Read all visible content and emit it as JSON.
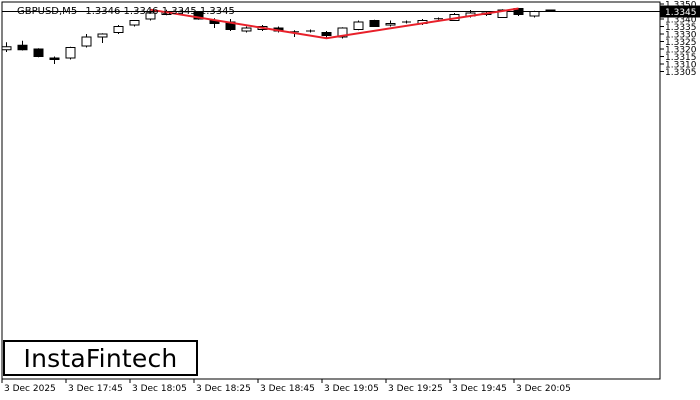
{
  "header": {
    "symbol": "GBPUSD,M5",
    "ohlc": "1.3346 1.3346 1.3345 1.3345"
  },
  "logo_text": "InstaFintech",
  "colors": {
    "background": "#ffffff",
    "candle": "#000000",
    "pattern_line": "#e8202a",
    "price_tag_bg": "#000000",
    "price_tag_text": "#ffffff"
  },
  "chart_data": {
    "type": "candlestick",
    "title": "GBPUSD,M5",
    "ylim": [
      1.33,
      1.335
    ],
    "y_ticks": [
      "1.3350",
      "1.3345",
      "1.3340",
      "1.3335",
      "1.3330",
      "1.3325",
      "1.3320",
      "1.3315",
      "1.3310",
      "1.3305"
    ],
    "x_ticks": [
      "3 Dec 2025",
      "3 Dec 17:45",
      "3 Dec 18:05",
      "3 Dec 18:25",
      "3 Dec 18:45",
      "3 Dec 19:05",
      "3 Dec 19:25",
      "3 Dec 19:45",
      "3 Dec 20:05"
    ],
    "current_price": "1.3345",
    "candles": [
      {
        "o": 1.33195,
        "h": 1.33245,
        "l": 1.3318,
        "c": 1.33215
      },
      {
        "o": 1.33225,
        "h": 1.33255,
        "l": 1.3319,
        "c": 1.33195
      },
      {
        "o": 1.332,
        "h": 1.33205,
        "l": 1.33145,
        "c": 1.3315
      },
      {
        "o": 1.3314,
        "h": 1.3315,
        "l": 1.331,
        "c": 1.3313
      },
      {
        "o": 1.3314,
        "h": 1.33215,
        "l": 1.3313,
        "c": 1.3321
      },
      {
        "o": 1.3322,
        "h": 1.333,
        "l": 1.3321,
        "c": 1.3328
      },
      {
        "o": 1.3328,
        "h": 1.33305,
        "l": 1.3324,
        "c": 1.333
      },
      {
        "o": 1.3331,
        "h": 1.3336,
        "l": 1.333,
        "c": 1.3335
      },
      {
        "o": 1.3336,
        "h": 1.3339,
        "l": 1.3335,
        "c": 1.3339
      },
      {
        "o": 1.334,
        "h": 1.3345,
        "l": 1.3339,
        "c": 1.3344
      },
      {
        "o": 1.3343,
        "h": 1.33462,
        "l": 1.33425,
        "c": 1.3345
      },
      {
        "o": 1.33448,
        "h": 1.33462,
        "l": 1.33425,
        "c": 1.33448
      },
      {
        "o": 1.3345,
        "h": 1.3345,
        "l": 1.33395,
        "c": 1.334
      },
      {
        "o": 1.3339,
        "h": 1.33405,
        "l": 1.3334,
        "c": 1.3337
      },
      {
        "o": 1.3338,
        "h": 1.334,
        "l": 1.3332,
        "c": 1.3333
      },
      {
        "o": 1.3332,
        "h": 1.3335,
        "l": 1.3331,
        "c": 1.3334
      },
      {
        "o": 1.3333,
        "h": 1.3336,
        "l": 1.3332,
        "c": 1.3335
      },
      {
        "o": 1.3334,
        "h": 1.3335,
        "l": 1.3331,
        "c": 1.3332
      },
      {
        "o": 1.33315,
        "h": 1.33325,
        "l": 1.3328,
        "c": 1.33315
      },
      {
        "o": 1.3332,
        "h": 1.3333,
        "l": 1.3331,
        "c": 1.3332
      },
      {
        "o": 1.3331,
        "h": 1.3332,
        "l": 1.3327,
        "c": 1.3329
      },
      {
        "o": 1.3328,
        "h": 1.33345,
        "l": 1.3327,
        "c": 1.3334
      },
      {
        "o": 1.3333,
        "h": 1.3339,
        "l": 1.33325,
        "c": 1.3338
      },
      {
        "o": 1.3339,
        "h": 1.33395,
        "l": 1.3335,
        "c": 1.3335
      },
      {
        "o": 1.3336,
        "h": 1.3339,
        "l": 1.3335,
        "c": 1.3337
      },
      {
        "o": 1.3338,
        "h": 1.3339,
        "l": 1.3337,
        "c": 1.3338
      },
      {
        "o": 1.3337,
        "h": 1.334,
        "l": 1.3336,
        "c": 1.3339
      },
      {
        "o": 1.334,
        "h": 1.3341,
        "l": 1.33395,
        "c": 1.33402
      },
      {
        "o": 1.3339,
        "h": 1.3344,
        "l": 1.3339,
        "c": 1.3343
      },
      {
        "o": 1.3342,
        "h": 1.3346,
        "l": 1.3341,
        "c": 1.3344
      },
      {
        "o": 1.3344,
        "h": 1.3345,
        "l": 1.3342,
        "c": 1.3343
      },
      {
        "o": 1.3341,
        "h": 1.33465,
        "l": 1.3341,
        "c": 1.3346
      },
      {
        "o": 1.3347,
        "h": 1.3347,
        "l": 1.3342,
        "c": 1.3343
      },
      {
        "o": 1.3342,
        "h": 1.33455,
        "l": 1.3341,
        "c": 1.3345
      },
      {
        "o": 1.3346,
        "h": 1.3346,
        "l": 1.3345,
        "c": 1.3345
      }
    ],
    "pattern_line": [
      {
        "candle": 9,
        "price": 1.33462
      },
      {
        "candle": 20,
        "price": 1.33272
      },
      {
        "candle": 32,
        "price": 1.3347
      }
    ]
  }
}
